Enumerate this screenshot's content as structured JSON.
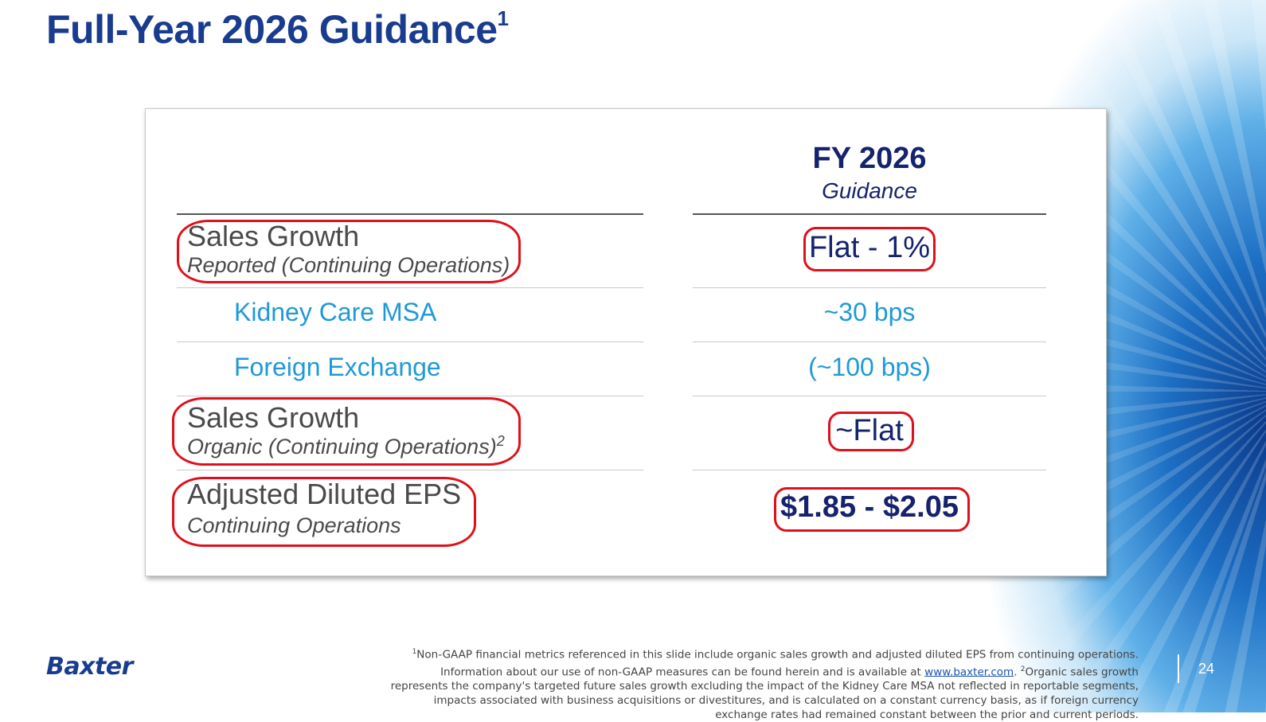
{
  "slide": {
    "title": "Full-Year 2026 Guidance",
    "title_superscript": "1",
    "page_number": "24"
  },
  "table": {
    "column_header": "FY 2026",
    "column_subheader": "Guidance",
    "rows": [
      {
        "label": "Sales Growth",
        "sublabel": "Reported (Continuing Operations)",
        "sublabel_sup": "",
        "value": "Flat - 1%"
      },
      {
        "label": "Kidney Care MSA",
        "value": "~30 bps"
      },
      {
        "label": "Foreign Exchange",
        "value": "(~100 bps)"
      },
      {
        "label": "Sales Growth",
        "sublabel": "Organic (Continuing Operations)",
        "sublabel_sup": "2",
        "value": "~Flat"
      },
      {
        "label": "Adjusted Diluted EPS",
        "sublabel": "Continuing Operations",
        "sublabel_sup": "",
        "value": "$1.85 - $2.05"
      }
    ]
  },
  "logo": {
    "text": "Baxter"
  },
  "footnote": {
    "sup1": "1",
    "part1": "Non-GAAP financial metrics referenced in this slide include organic sales growth and adjusted diluted EPS from continuing operations. Information about our use of non-GAAP measures can be found herein and is available at ",
    "link": "www.baxter.com",
    "part2": ". ",
    "sup2": "2",
    "part3": "Organic sales growth represents the company's targeted future sales growth excluding the impact of the Kidney Care MSA not reflected in reportable segments, impacts associated with business acquisitions or divestitures, and is calculated on a constant currency basis, as if foreign currency exchange rates had remained constant between the prior and current periods."
  },
  "colors": {
    "title_blue": "#1a3c8f",
    "navy": "#15236e",
    "light_blue": "#1f9ad6",
    "highlight_red": "#e0101a"
  }
}
